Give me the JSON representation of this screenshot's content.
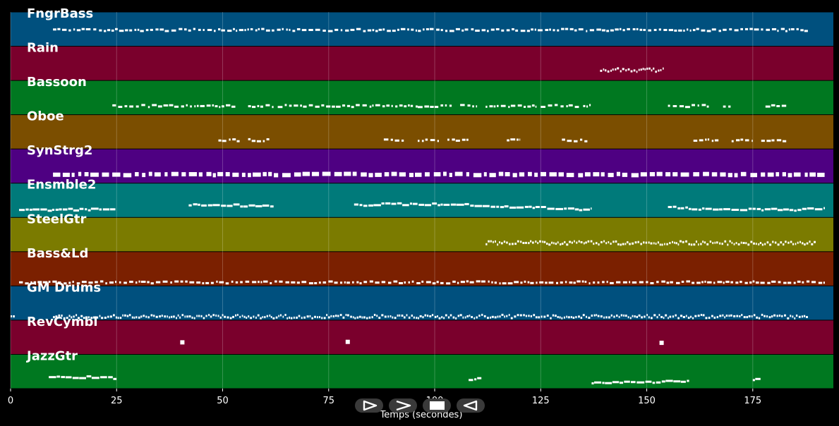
{
  "chart_data": {
    "type": "piano-roll",
    "xlabel": "Temps (secondes)",
    "xlim": [
      0,
      194
    ],
    "xticks": [
      0,
      25,
      50,
      75,
      100,
      125,
      150,
      175
    ],
    "grid": true,
    "tracks": [
      {
        "name": "FngrBass",
        "color": "#00507e",
        "segments": [
          [
            10,
            188
          ]
        ],
        "style": "dash",
        "pitch": 0.28
      },
      {
        "name": "Rain",
        "color": "#7a002c",
        "segments": [
          [
            139,
            154
          ]
        ],
        "style": "dense",
        "pitch": 0.45
      },
      {
        "name": "Bassoon",
        "color": "#007820",
        "segments": [
          [
            24,
            53
          ],
          [
            56,
            62
          ],
          [
            63,
            96
          ],
          [
            96,
            104
          ],
          [
            106,
            110
          ],
          [
            112,
            124
          ],
          [
            125,
            134
          ],
          [
            135,
            137
          ],
          [
            155,
            165
          ],
          [
            168,
            170
          ],
          [
            178,
            183
          ]
        ],
        "style": "dash",
        "pitch": 0.5
      },
      {
        "name": "Oboe",
        "color": "#7b4e00",
        "segments": [
          [
            49,
            54
          ],
          [
            56,
            61
          ],
          [
            88,
            93
          ],
          [
            96,
            101
          ],
          [
            103,
            108
          ],
          [
            117,
            120
          ],
          [
            130,
            136
          ],
          [
            161,
            167
          ],
          [
            170,
            175
          ],
          [
            177,
            183
          ]
        ],
        "style": "dash",
        "pitch": 0.5
      },
      {
        "name": "SynStrg2",
        "color": "#4e0082",
        "segments": [
          [
            10,
            192
          ]
        ],
        "style": "block",
        "pitch": 0.5
      },
      {
        "name": "Ensmble2",
        "color": "#007a7a",
        "segments": [
          [
            2,
            25
          ],
          [
            42,
            62
          ],
          [
            81,
            137
          ],
          [
            155,
            192
          ]
        ],
        "style": "melody",
        "pitch": 0.45
      },
      {
        "name": "SteelGtr",
        "color": "#7b7b00",
        "segments": [
          [
            112,
            190
          ]
        ],
        "style": "dense",
        "pitch": 0.5
      },
      {
        "name": "Bass&Ld",
        "color": "#7b2000",
        "segments": [
          [
            2,
            192
          ]
        ],
        "style": "dash",
        "pitch": 0.65
      },
      {
        "name": "GM Drums",
        "color": "#00507e",
        "segments": [
          [
            0,
            1
          ],
          [
            10,
            188
          ]
        ],
        "style": "dense",
        "pitch": 0.65
      },
      {
        "name": "RevCymbl",
        "color": "#7a002c",
        "segments": [
          [
            40,
            41
          ],
          [
            79,
            80
          ],
          [
            153,
            154
          ]
        ],
        "style": "block",
        "pitch": 0.4
      },
      {
        "name": "JazzGtr",
        "color": "#007820",
        "segments": [
          [
            9,
            25
          ],
          [
            108,
            111
          ],
          [
            137,
            160
          ],
          [
            175,
            177
          ]
        ],
        "style": "melody",
        "pitch": 0.5
      }
    ]
  },
  "controls": [
    {
      "name": "play-icon"
    },
    {
      "name": "fast-forward-icon"
    },
    {
      "name": "stop-icon"
    },
    {
      "name": "rewind-icon"
    }
  ]
}
